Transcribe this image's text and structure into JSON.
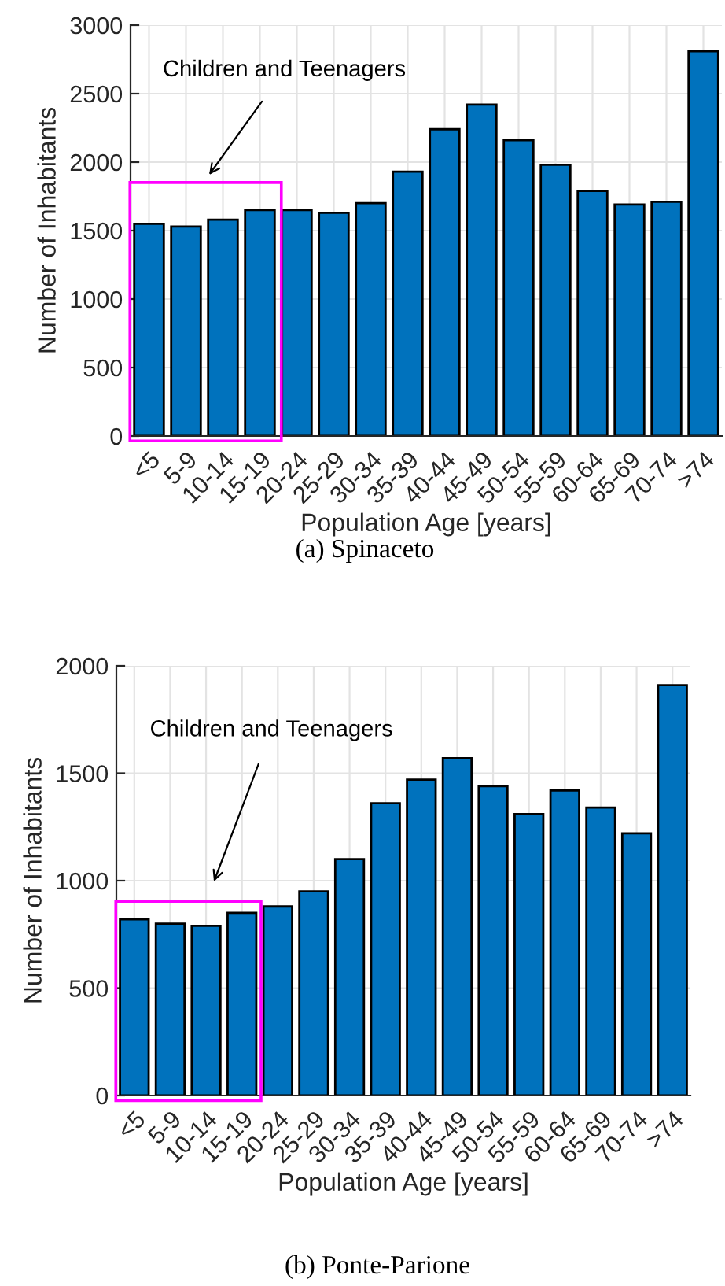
{
  "chart_data": [
    {
      "type": "bar",
      "title": "(a) Spinaceto",
      "xlabel": "Population Age [years]",
      "ylabel": "Number of Inhabitants",
      "categories": [
        "<5",
        "5-9",
        "10-14",
        "15-19",
        "20-24",
        "25-29",
        "30-34",
        "35-39",
        "40-44",
        "45-49",
        "50-54",
        "55-59",
        "60-64",
        "65-69",
        "70-74",
        ">74"
      ],
      "values": [
        1550,
        1530,
        1580,
        1650,
        1650,
        1630,
        1700,
        1930,
        2240,
        2420,
        2160,
        1980,
        1790,
        1690,
        1710,
        2810
      ],
      "color": "#0072bd",
      "ylim": [
        0,
        3000
      ],
      "yticks": [
        0,
        500,
        1000,
        1500,
        2000,
        2500,
        3000
      ],
      "grid": true,
      "annotations": [
        "Children and Teenagers"
      ]
    },
    {
      "type": "bar",
      "title": "(b) Ponte-Parione",
      "xlabel": "Population Age [years]",
      "ylabel": "Number of Inhabitants",
      "categories": [
        "<5",
        "5-9",
        "10-14",
        "15-19",
        "20-24",
        "25-29",
        "30-34",
        "35-39",
        "40-44",
        "45-49",
        "50-54",
        "55-59",
        "60-64",
        "65-69",
        "70-74",
        ">74"
      ],
      "values": [
        820,
        800,
        790,
        850,
        880,
        950,
        1100,
        1360,
        1470,
        1570,
        1440,
        1310,
        1420,
        1340,
        1220,
        1910
      ],
      "color": "#0072bd",
      "ylim": [
        0,
        2000
      ],
      "yticks": [
        0,
        500,
        1000,
        1500,
        2000
      ],
      "grid": true,
      "annotations": [
        "Children and Teenagers"
      ]
    }
  ]
}
